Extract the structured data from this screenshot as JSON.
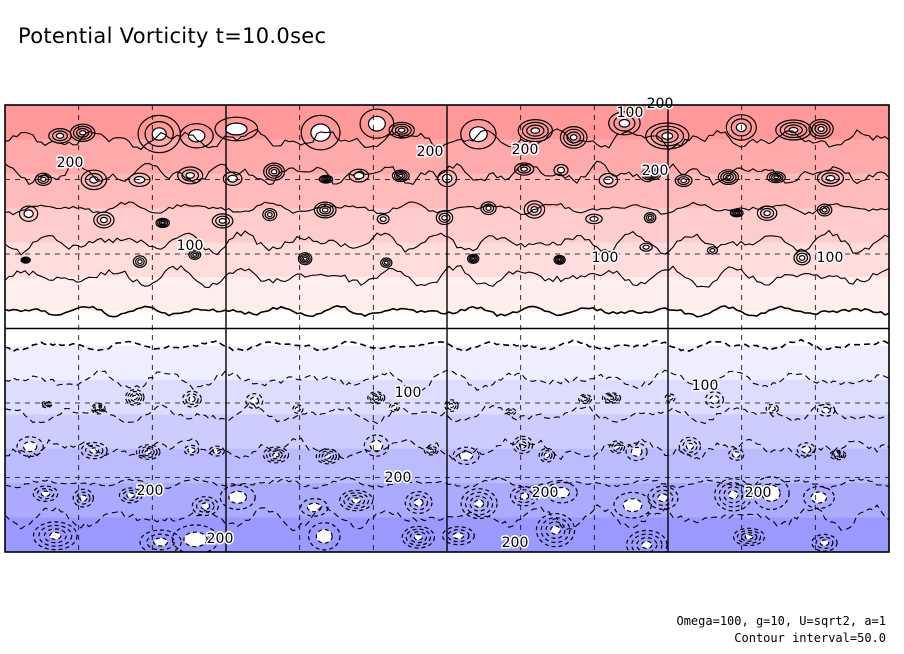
{
  "chart_data": {
    "type": "heatmap",
    "title": "Potential Vorticity t=10.0sec",
    "variable": "potential vorticity",
    "colormap": "blue-white-red",
    "positive_band_colors": [
      "#ffeeee",
      "#ffdddd",
      "#ffcccc",
      "#ffbbbb",
      "#ffaaaa",
      "#ff9999"
    ],
    "negative_band_colors": [
      "#eeeeff",
      "#ddddff",
      "#ccccff",
      "#bbbbff",
      "#aaaaff",
      "#9999ff"
    ],
    "contour_interval": 50.0,
    "contour_labels": [
      {
        "text": "100"
      },
      {
        "text": "200"
      },
      {
        "text": "200"
      },
      {
        "text": "200"
      },
      {
        "text": "200"
      },
      {
        "text": "200"
      },
      {
        "text": "100"
      },
      {
        "text": "100"
      },
      {
        "text": "100"
      },
      {
        "text": "100"
      },
      {
        "text": "100"
      },
      {
        "text": "200"
      },
      {
        "text": "200"
      },
      {
        "text": "200"
      },
      {
        "text": "200"
      },
      {
        "text": "200"
      },
      {
        "text": "200"
      }
    ],
    "positive_contour_style": "solid",
    "negative_contour_style": "dashed",
    "grid": true,
    "grid_columns": 6,
    "grid_rows": 2,
    "grid_style": "dashed"
  },
  "footer": {
    "parameters": "Omega=100, g=10, U=sqrt2, a=1",
    "contour_note": "Contour interval=50.0"
  }
}
